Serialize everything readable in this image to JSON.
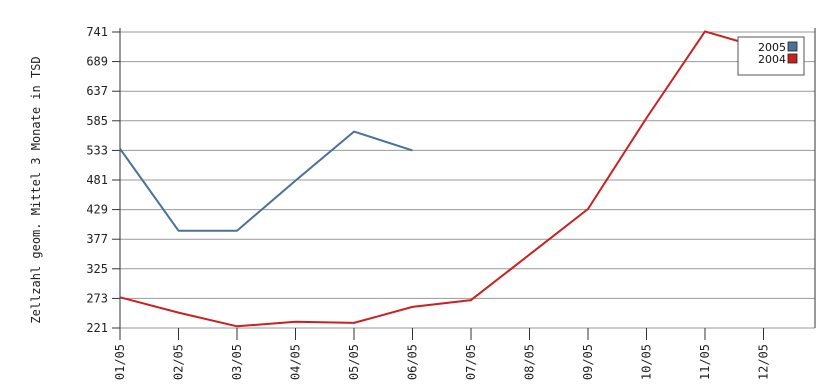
{
  "chart_data": {
    "type": "line",
    "title": "",
    "ylabel": "Zellzahl geom. Mittel 3 Monate in TSD",
    "xlabel": "",
    "categories": [
      "01/05",
      "02/05",
      "03/05",
      "04/05",
      "05/05",
      "06/05",
      "07/05",
      "08/05",
      "09/05",
      "10/05",
      "11/05",
      "12/05"
    ],
    "yticks": [
      221,
      273,
      325,
      377,
      429,
      481,
      533,
      585,
      637,
      689,
      741
    ],
    "ylim": [
      221,
      741
    ],
    "grid": true,
    "legend_position": "top-right",
    "series": [
      {
        "name": "2005",
        "color": "#4a7295",
        "values": [
          536,
          392,
          392,
          480,
          566,
          533,
          null,
          null,
          null,
          null,
          null,
          null
        ]
      },
      {
        "name": "2004",
        "color": "#cc1f1f",
        "values": [
          275,
          248,
          224,
          232,
          230,
          258,
          270,
          350,
          430,
          590,
          742,
          712
        ]
      }
    ]
  }
}
